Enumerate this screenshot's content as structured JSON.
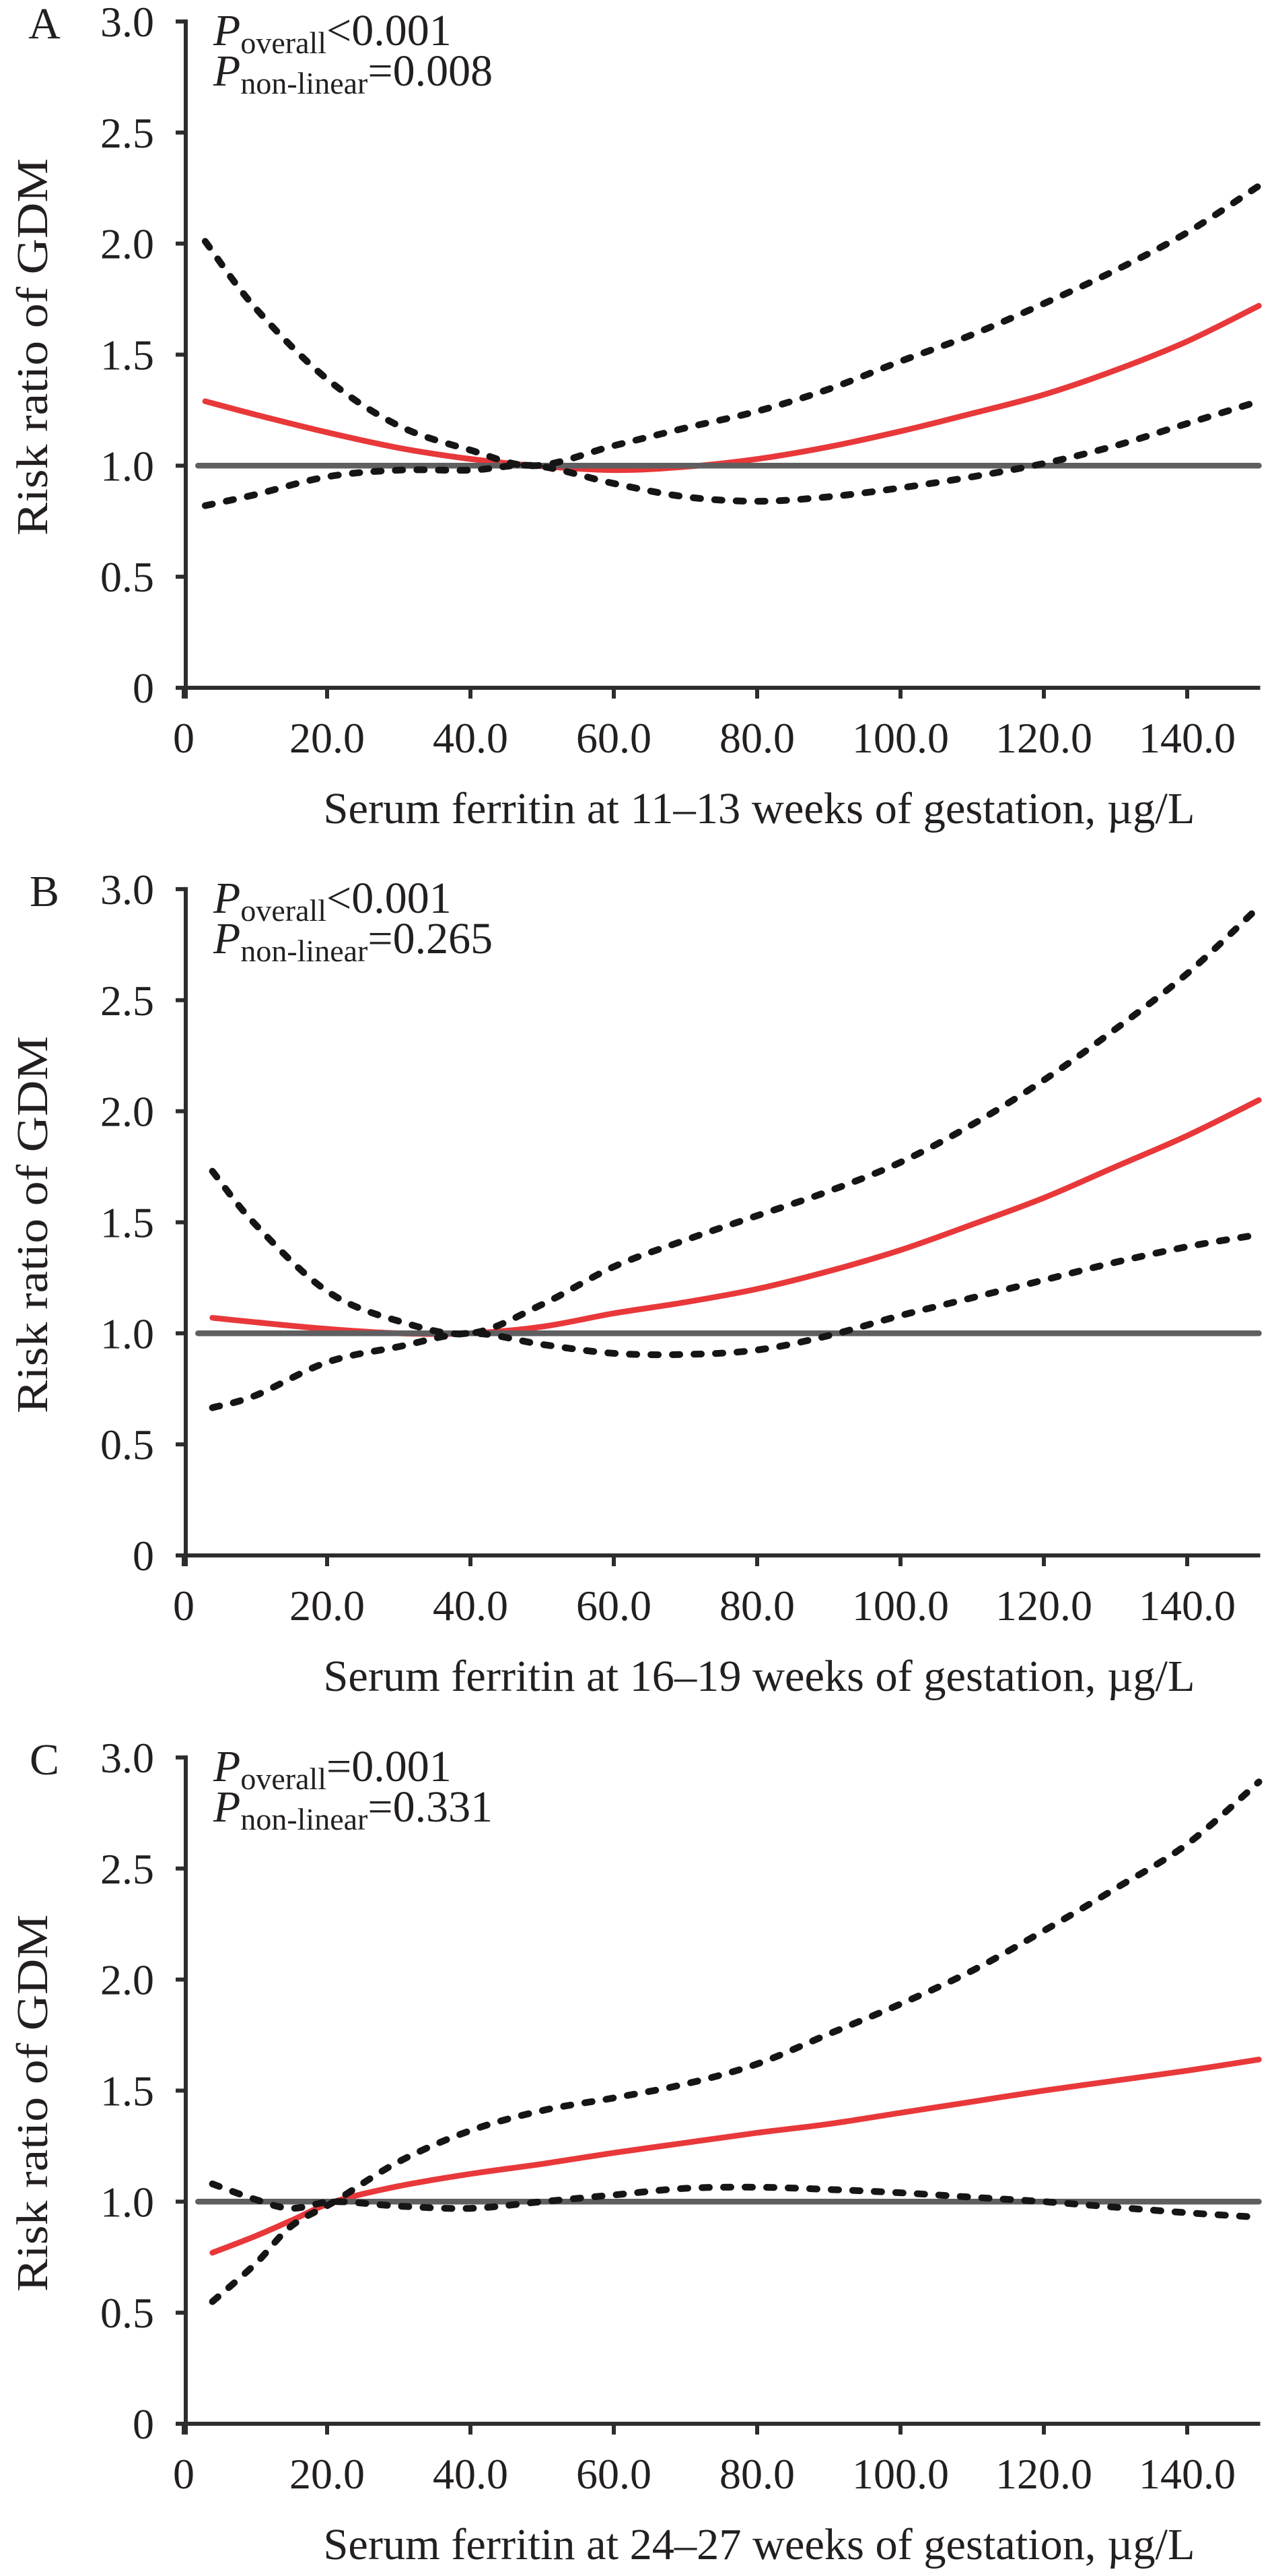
{
  "figure": {
    "colors": {
      "estimate": "#e8383a",
      "confidence_interval": "#151515",
      "reference": "#5f5f61",
      "axis": "#2d2d2d",
      "text": "#231f20",
      "background": "#ffffff"
    }
  },
  "chart_data": [
    {
      "type": "line",
      "panel": "A",
      "p_overall": {
        "symbol": "P",
        "subscript": "overall",
        "text": "<0.001"
      },
      "p_nonlinear": {
        "symbol": "P",
        "subscript": "non-linear",
        "text": "=0.008"
      },
      "xlabel": "Serum ferritin at 11–13 weeks of gestation, µg/L",
      "ylabel": "Risk ratio of GDM",
      "xlim": [
        0,
        150
      ],
      "ylim": [
        0,
        3
      ],
      "grid": false,
      "xticks": [
        "0",
        "20.0",
        "40.0",
        "60.0",
        "80.0",
        "100.0",
        "120.0",
        "140.0"
      ],
      "yticks": [
        "0",
        "0.5",
        "1.0",
        "1.5",
        "2.0",
        "2.5",
        "3.0"
      ],
      "reference_value": 1.0,
      "x": [
        3,
        10,
        20,
        30,
        40,
        49,
        60,
        70,
        80,
        90,
        100,
        110,
        120,
        130,
        140,
        150
      ],
      "series": {
        "estimate": {
          "values": [
            1.29,
            1.23,
            1.15,
            1.08,
            1.03,
            1.0,
            0.98,
            0.995,
            1.03,
            1.085,
            1.155,
            1.235,
            1.32,
            1.43,
            1.56,
            1.72
          ]
        },
        "upper_95ci": {
          "values": [
            2.01,
            1.71,
            1.39,
            1.18,
            1.07,
            1.0,
            1.09,
            1.17,
            1.245,
            1.345,
            1.47,
            1.59,
            1.73,
            1.88,
            2.05,
            2.26
          ]
        },
        "lower_95ci": {
          "values": [
            0.82,
            0.87,
            0.95,
            0.98,
            0.98,
            1.0,
            0.92,
            0.86,
            0.84,
            0.86,
            0.9,
            0.95,
            1.01,
            1.09,
            1.19,
            1.29
          ]
        }
      }
    },
    {
      "type": "line",
      "panel": "B",
      "p_overall": {
        "symbol": "P",
        "subscript": "overall",
        "text": "<0.001"
      },
      "p_nonlinear": {
        "symbol": "P",
        "subscript": "non-linear",
        "text": "=0.265"
      },
      "xlabel": "Serum ferritin at 16–19 weeks of gestation, µg/L",
      "ylabel": "Risk ratio of GDM",
      "xlim": [
        0,
        150
      ],
      "ylim": [
        0,
        3
      ],
      "grid": false,
      "xticks": [
        "0",
        "20.0",
        "40.0",
        "60.0",
        "80.0",
        "100.0",
        "120.0",
        "140.0"
      ],
      "yticks": [
        "0",
        "0.5",
        "1.0",
        "1.5",
        "2.0",
        "2.5",
        "3.0"
      ],
      "reference_value": 1.0,
      "x": [
        4,
        10,
        20,
        30,
        40,
        50,
        60,
        70,
        80,
        90,
        100,
        110,
        120,
        130,
        140,
        150
      ],
      "series": {
        "estimate": {
          "values": [
            1.07,
            1.05,
            1.02,
            1.0,
            1.0,
            1.03,
            1.09,
            1.14,
            1.2,
            1.28,
            1.375,
            1.49,
            1.61,
            1.75,
            1.89,
            2.05
          ]
        },
        "upper_95ci": {
          "values": [
            1.73,
            1.49,
            1.19,
            1.055,
            1.0,
            1.13,
            1.3,
            1.42,
            1.53,
            1.64,
            1.77,
            1.94,
            2.14,
            2.37,
            2.62,
            2.92
          ]
        },
        "lower_95ci": {
          "values": [
            0.665,
            0.72,
            0.87,
            0.94,
            1.0,
            0.95,
            0.91,
            0.905,
            0.925,
            0.99,
            1.08,
            1.16,
            1.24,
            1.32,
            1.39,
            1.445
          ]
        }
      }
    },
    {
      "type": "line",
      "panel": "C",
      "p_overall": {
        "symbol": "P",
        "subscript": "overall",
        "text": "=0.001"
      },
      "p_nonlinear": {
        "symbol": "P",
        "subscript": "non-linear",
        "text": "=0.331"
      },
      "xlabel": "Serum ferritin at 24–27 weeks of gestation, µg/L",
      "ylabel": "Risk ratio of GDM",
      "xlim": [
        0,
        150
      ],
      "ylim": [
        0,
        3
      ],
      "grid": false,
      "xticks": [
        "0",
        "20.0",
        "40.0",
        "60.0",
        "80.0",
        "100.0",
        "120.0",
        "140.0"
      ],
      "yticks": [
        "0",
        "0.5",
        "1.0",
        "1.5",
        "2.0",
        "2.5",
        "3.0"
      ],
      "reference_value": 1.0,
      "x": [
        4,
        10,
        15,
        21,
        30,
        40,
        50,
        60,
        70,
        80,
        90,
        100,
        110,
        120,
        130,
        140,
        150
      ],
      "series": {
        "estimate": {
          "values": [
            0.77,
            0.845,
            0.915,
            1.0,
            1.07,
            1.125,
            1.17,
            1.22,
            1.265,
            1.31,
            1.35,
            1.4,
            1.45,
            1.5,
            1.545,
            1.59,
            1.64
          ]
        },
        "upper_95ci": {
          "values": [
            0.55,
            0.72,
            0.89,
            1.0,
            1.18,
            1.32,
            1.41,
            1.467,
            1.53,
            1.62,
            1.755,
            1.89,
            2.04,
            2.22,
            2.41,
            2.61,
            2.89
          ]
        },
        "lower_95ci": {
          "values": [
            1.08,
            1.01,
            0.97,
            1.0,
            0.98,
            0.97,
            1.0,
            1.03,
            1.06,
            1.065,
            1.055,
            1.04,
            1.02,
            1.0,
            0.975,
            0.95,
            0.93
          ]
        }
      }
    }
  ]
}
